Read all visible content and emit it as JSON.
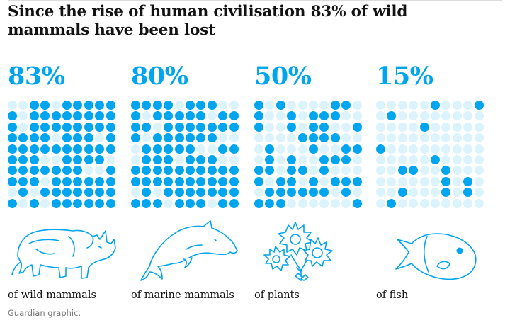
{
  "title": "Since the rise of human civilisation 83% of wild mammals have been lost",
  "source": "Guardian graphic.",
  "colors": {
    "lost": "#00a5ef",
    "remaining": "#dbf3fd",
    "text": "#121212",
    "source": "#767676"
  },
  "chart_data": [
    {
      "type": "dot-grid",
      "category": "wild mammals",
      "percent_lost": 83,
      "grid": [
        10,
        10
      ],
      "label_value": "83%",
      "caption": "of wild mammals",
      "icon": "rhino-icon"
    },
    {
      "type": "dot-grid",
      "category": "marine mammals",
      "percent_lost": 80,
      "grid": [
        10,
        10
      ],
      "label_value": "80%",
      "caption": "of marine mammals",
      "icon": "dolphin-icon"
    },
    {
      "type": "dot-grid",
      "category": "plants",
      "percent_lost": 50,
      "grid": [
        10,
        10
      ],
      "label_value": "50%",
      "caption": "of plants",
      "icon": "flowers-icon"
    },
    {
      "type": "dot-grid",
      "category": "fish",
      "percent_lost": 15,
      "grid": [
        10,
        10
      ],
      "label_value": "15%",
      "caption": "of fish",
      "icon": "fish-icon"
    }
  ]
}
